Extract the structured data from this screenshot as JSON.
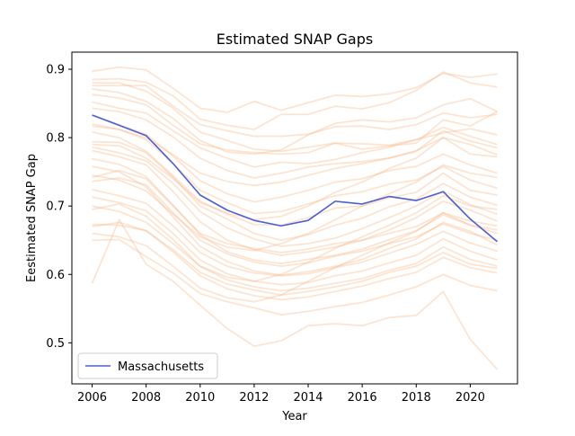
{
  "chart_data": {
    "type": "line",
    "title": "Estimated SNAP Gaps",
    "xlabel": "Year",
    "ylabel": "Eestimated SNAP Gap",
    "xlim": [
      2005.25,
      2021.75
    ],
    "ylim": [
      0.44,
      0.925
    ],
    "xticks": [
      2006,
      2008,
      2010,
      2012,
      2014,
      2016,
      2018,
      2020
    ],
    "yticks": [
      0.5,
      0.6,
      0.7,
      0.8,
      0.9
    ],
    "ytick_labels": [
      "0.5",
      "0.6",
      "0.7",
      "0.8",
      "0.9"
    ],
    "grid": false,
    "legend": {
      "position": "lower-left",
      "entries": [
        "Massachusetts"
      ]
    },
    "colors": {
      "background_series": "#f6b98a",
      "highlight_series": "#4c5fcf"
    },
    "x": [
      2006,
      2007,
      2008,
      2009,
      2010,
      2011,
      2012,
      2013,
      2014,
      2015,
      2016,
      2017,
      2018,
      2019,
      2020,
      2021
    ],
    "highlight_series": {
      "name": "Massachusetts",
      "values": [
        0.833,
        0.818,
        0.803,
        0.762,
        0.716,
        0.694,
        0.679,
        0.671,
        0.679,
        0.707,
        0.703,
        0.714,
        0.708,
        0.721,
        0.681,
        0.648
      ]
    },
    "background_series": [
      {
        "values": [
          0.897,
          0.903,
          0.899,
          0.872,
          0.843,
          0.837,
          0.853,
          0.84,
          0.851,
          0.862,
          0.86,
          0.864,
          0.873,
          0.894,
          0.888,
          0.893
        ]
      },
      {
        "values": [
          0.885,
          0.886,
          0.881,
          0.861,
          0.827,
          0.818,
          0.812,
          0.834,
          0.834,
          0.846,
          0.842,
          0.851,
          0.869,
          0.896,
          0.88,
          0.874
        ]
      },
      {
        "values": [
          0.88,
          0.88,
          0.868,
          0.843,
          0.808,
          0.796,
          0.783,
          0.78,
          0.786,
          0.792,
          0.783,
          0.788,
          0.792,
          0.826,
          0.817,
          0.838
        ]
      },
      {
        "values": [
          0.876,
          0.876,
          0.876,
          0.846,
          0.819,
          0.81,
          0.802,
          0.802,
          0.805,
          0.816,
          0.817,
          0.812,
          0.819,
          0.836,
          0.829,
          0.834
        ]
      },
      {
        "values": [
          0.871,
          0.866,
          0.853,
          0.828,
          0.796,
          0.779,
          0.776,
          0.782,
          0.804,
          0.821,
          0.826,
          0.823,
          0.829,
          0.848,
          0.857,
          0.838
        ]
      },
      {
        "values": [
          0.863,
          0.858,
          0.848,
          0.818,
          0.791,
          0.782,
          0.778,
          0.776,
          0.778,
          0.792,
          0.791,
          0.789,
          0.797,
          0.807,
          0.813,
          0.804
        ]
      },
      {
        "values": [
          0.852,
          0.843,
          0.836,
          0.81,
          0.785,
          0.77,
          0.757,
          0.764,
          0.762,
          0.768,
          0.778,
          0.786,
          0.797,
          0.815,
          0.802,
          0.79
        ]
      },
      {
        "values": [
          0.843,
          0.838,
          0.826,
          0.801,
          0.77,
          0.752,
          0.741,
          0.748,
          0.757,
          0.762,
          0.765,
          0.77,
          0.781,
          0.8,
          0.776,
          0.772
        ]
      },
      {
        "values": [
          0.833,
          0.819,
          0.805,
          0.773,
          0.737,
          0.718,
          0.706,
          0.713,
          0.723,
          0.735,
          0.74,
          0.752,
          0.758,
          0.776,
          0.76,
          0.748
        ]
      },
      {
        "values": [
          0.817,
          0.812,
          0.797,
          0.762,
          0.723,
          0.705,
          0.689,
          0.692,
          0.703,
          0.715,
          0.721,
          0.732,
          0.738,
          0.758,
          0.738,
          0.726
        ]
      },
      {
        "values": [
          0.808,
          0.8,
          0.78,
          0.744,
          0.707,
          0.688,
          0.673,
          0.672,
          0.683,
          0.697,
          0.7,
          0.712,
          0.72,
          0.748,
          0.723,
          0.716
        ]
      },
      {
        "values": [
          0.794,
          0.793,
          0.778,
          0.742,
          0.7,
          0.681,
          0.66,
          0.65,
          0.658,
          0.672,
          0.682,
          0.699,
          0.71,
          0.733,
          0.713,
          0.701
        ]
      },
      {
        "values": [
          0.786,
          0.778,
          0.766,
          0.733,
          0.692,
          0.668,
          0.652,
          0.641,
          0.645,
          0.653,
          0.667,
          0.683,
          0.7,
          0.722,
          0.702,
          0.688
        ]
      },
      {
        "values": [
          0.781,
          0.772,
          0.76,
          0.721,
          0.677,
          0.65,
          0.636,
          0.628,
          0.633,
          0.64,
          0.65,
          0.665,
          0.683,
          0.707,
          0.694,
          0.678
        ]
      },
      {
        "values": [
          0.769,
          0.761,
          0.743,
          0.701,
          0.658,
          0.633,
          0.621,
          0.616,
          0.622,
          0.628,
          0.637,
          0.651,
          0.664,
          0.687,
          0.672,
          0.66
        ]
      },
      {
        "values": [
          0.758,
          0.75,
          0.728,
          0.684,
          0.641,
          0.619,
          0.605,
          0.599,
          0.604,
          0.612,
          0.622,
          0.638,
          0.652,
          0.676,
          0.663,
          0.643
        ]
      },
      {
        "values": [
          0.742,
          0.752,
          0.74,
          0.7,
          0.66,
          0.645,
          0.638,
          0.632,
          0.637,
          0.645,
          0.65,
          0.66,
          0.67,
          0.69,
          0.678,
          0.671
        ]
      },
      {
        "values": [
          0.736,
          0.741,
          0.731,
          0.69,
          0.65,
          0.63,
          0.618,
          0.612,
          0.617,
          0.627,
          0.634,
          0.645,
          0.655,
          0.674,
          0.66,
          0.65
        ]
      },
      {
        "values": [
          0.724,
          0.715,
          0.704,
          0.671,
          0.632,
          0.612,
          0.602,
          0.598,
          0.601,
          0.61,
          0.618,
          0.631,
          0.644,
          0.663,
          0.646,
          0.634
        ]
      },
      {
        "values": [
          0.713,
          0.705,
          0.693,
          0.66,
          0.621,
          0.601,
          0.59,
          0.585,
          0.588,
          0.598,
          0.605,
          0.617,
          0.628,
          0.652,
          0.634,
          0.621
        ]
      },
      {
        "values": [
          0.695,
          0.703,
          0.685,
          0.651,
          0.612,
          0.592,
          0.582,
          0.576,
          0.58,
          0.587,
          0.594,
          0.606,
          0.616,
          0.64,
          0.622,
          0.612
        ]
      },
      {
        "values": [
          0.673,
          0.672,
          0.664,
          0.633,
          0.598,
          0.579,
          0.569,
          0.563,
          0.567,
          0.575,
          0.583,
          0.594,
          0.603,
          0.625,
          0.61,
          0.602
        ]
      },
      {
        "values": [
          0.67,
          0.676,
          0.664,
          0.636,
          0.603,
          0.586,
          0.577,
          0.57,
          0.575,
          0.582,
          0.59,
          0.603,
          0.612,
          0.632,
          0.615,
          0.609
        ]
      },
      {
        "values": [
          0.65,
          0.651,
          0.626,
          0.602,
          0.572,
          0.56,
          0.551,
          0.541,
          0.546,
          0.553,
          0.559,
          0.57,
          0.582,
          0.6,
          0.584,
          0.576
        ]
      },
      {
        "values": [
          0.587,
          0.68,
          0.615,
          0.59,
          0.555,
          0.521,
          0.495,
          0.503,
          0.525,
          0.528,
          0.525,
          0.537,
          0.54,
          0.575,
          0.505,
          0.461
        ]
      },
      {
        "values": [
          0.79,
          0.788,
          0.77,
          0.74,
          0.705,
          0.69,
          0.68,
          0.685,
          0.7,
          0.72,
          0.735,
          0.755,
          0.77,
          0.8,
          0.79,
          0.775
        ]
      },
      {
        "values": [
          0.745,
          0.738,
          0.722,
          0.688,
          0.655,
          0.64,
          0.635,
          0.645,
          0.66,
          0.68,
          0.7,
          0.718,
          0.735,
          0.76,
          0.748,
          0.742
        ]
      },
      {
        "values": [
          0.7,
          0.692,
          0.676,
          0.645,
          0.612,
          0.596,
          0.59,
          0.6,
          0.618,
          0.638,
          0.655,
          0.672,
          0.69,
          0.715,
          0.7,
          0.695
        ]
      },
      {
        "values": [
          0.66,
          0.655,
          0.642,
          0.612,
          0.58,
          0.566,
          0.56,
          0.57,
          0.59,
          0.61,
          0.628,
          0.646,
          0.663,
          0.69,
          0.672,
          0.665
        ]
      },
      {
        "values": [
          0.82,
          0.812,
          0.8,
          0.775,
          0.748,
          0.736,
          0.73,
          0.735,
          0.745,
          0.755,
          0.762,
          0.77,
          0.78,
          0.81,
          0.795,
          0.785
        ]
      }
    ]
  }
}
